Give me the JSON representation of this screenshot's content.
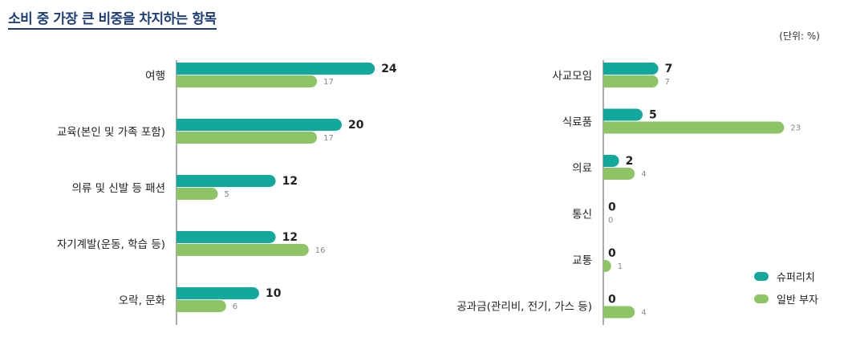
{
  "title": "소비 중 가장 큰 비중을 차지하는 항목",
  "unit": "(단위: %)",
  "colors": {
    "super_rich": "#12a89e",
    "general_rich": "#8cc466",
    "axis": "#555555"
  },
  "chart_data": [
    {
      "type": "bar",
      "orientation": "horizontal",
      "categories": [
        "여행",
        "교육(본인 및 가족 포함)",
        "의류 및 신발 등 패션",
        "자기계발(운동, 학습 등)",
        "오락, 문화"
      ],
      "series": [
        {
          "name": "슈퍼리치",
          "values": [
            24,
            20,
            12,
            12,
            10
          ]
        },
        {
          "name": "일반 부자",
          "values": [
            17,
            17,
            5,
            16,
            6
          ]
        }
      ]
    },
    {
      "type": "bar",
      "orientation": "horizontal",
      "categories": [
        "사교모임",
        "식료품",
        "의료",
        "통신",
        "교통",
        "공과금(관리비, 전기, 가스 등)"
      ],
      "series": [
        {
          "name": "슈퍼리치",
          "values": [
            7,
            5,
            2,
            0,
            0,
            0
          ]
        },
        {
          "name": "일반 부자",
          "values": [
            7,
            23,
            4,
            0,
            1,
            4
          ]
        }
      ]
    }
  ],
  "legend": [
    {
      "label": "슈퍼리치",
      "color_key": "super_rich"
    },
    {
      "label": "일반 부자",
      "color_key": "general_rich"
    }
  ]
}
